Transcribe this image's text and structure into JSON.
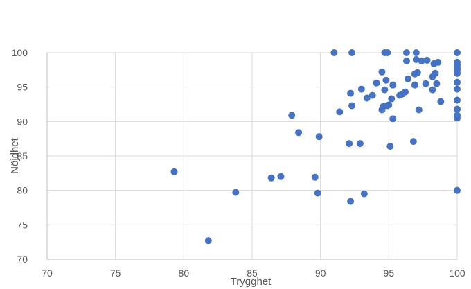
{
  "chart_data": {
    "type": "scatter",
    "xlabel": "Trygghet",
    "ylabel": "Nöjdhet",
    "xlim": [
      70,
      100
    ],
    "ylim": [
      70,
      100
    ],
    "x_ticks": [
      "70",
      "75",
      "80",
      "85",
      "90",
      "95",
      "100"
    ],
    "y_ticks": [
      "70",
      "75",
      "80",
      "85",
      "90",
      "95",
      "100"
    ],
    "grid": true,
    "legend": "none",
    "marker_color": "#4472C4",
    "series": [
      {
        "points": [
          [
            79.3,
            82.7
          ],
          [
            81.8,
            72.7
          ],
          [
            83.8,
            79.7
          ],
          [
            86.4,
            81.8
          ],
          [
            87.1,
            82.0
          ],
          [
            87.9,
            90.9
          ],
          [
            88.4,
            88.4
          ],
          [
            89.6,
            81.9
          ],
          [
            89.8,
            79.6
          ],
          [
            89.9,
            87.8
          ],
          [
            91.0,
            100.0
          ],
          [
            91.4,
            91.4
          ],
          [
            92.1,
            86.8
          ],
          [
            92.2,
            94.1
          ],
          [
            92.2,
            78.4
          ],
          [
            92.3,
            92.3
          ],
          [
            92.3,
            100.0
          ],
          [
            92.9,
            86.8
          ],
          [
            93.0,
            94.7
          ],
          [
            93.2,
            79.5
          ],
          [
            93.4,
            93.4
          ],
          [
            93.8,
            93.8
          ],
          [
            94.1,
            95.6
          ],
          [
            94.5,
            97.2
          ],
          [
            94.5,
            91.7
          ],
          [
            94.6,
            92.2
          ],
          [
            94.7,
            94.6
          ],
          [
            94.7,
            100.0
          ],
          [
            94.8,
            96.0
          ],
          [
            94.9,
            100.0
          ],
          [
            94.9,
            92.3
          ],
          [
            95.0,
            92.4
          ],
          [
            95.1,
            86.4
          ],
          [
            95.2,
            93.3
          ],
          [
            95.3,
            90.4
          ],
          [
            95.3,
            95.3
          ],
          [
            95.8,
            93.8
          ],
          [
            96.0,
            94.0
          ],
          [
            96.2,
            94.3
          ],
          [
            96.3,
            98.8
          ],
          [
            96.3,
            100.0
          ],
          [
            96.4,
            96.2
          ],
          [
            96.8,
            87.1
          ],
          [
            96.9,
            95.3
          ],
          [
            96.9,
            96.9
          ],
          [
            97.0,
            99.0
          ],
          [
            97.0,
            100.0
          ],
          [
            97.1,
            97.1
          ],
          [
            97.2,
            91.7
          ],
          [
            97.4,
            98.8
          ],
          [
            97.7,
            95.5
          ],
          [
            97.8,
            98.9
          ],
          [
            98.2,
            94.6
          ],
          [
            98.2,
            96.5
          ],
          [
            98.3,
            98.4
          ],
          [
            98.4,
            97.0
          ],
          [
            98.5,
            95.5
          ],
          [
            98.6,
            98.6
          ],
          [
            98.8,
            92.9
          ],
          [
            100.0,
            100.0
          ],
          [
            100.0,
            98.6
          ],
          [
            100.0,
            98.2
          ],
          [
            100.0,
            97.8
          ],
          [
            100.0,
            97.5
          ],
          [
            100.0,
            97.0
          ],
          [
            100.0,
            95.7
          ],
          [
            100.0,
            94.7
          ],
          [
            100.0,
            93.1
          ],
          [
            100.0,
            91.8
          ],
          [
            100.0,
            90.9
          ],
          [
            100.0,
            90.5
          ],
          [
            100.0,
            80.0
          ]
        ]
      }
    ]
  }
}
